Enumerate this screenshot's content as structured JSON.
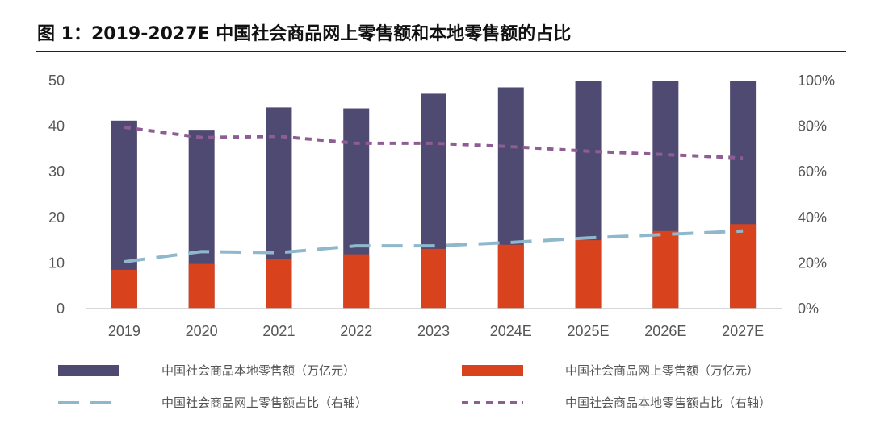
{
  "title": "图 1：2019-2027E 中国社会商品网上零售额和本地零售额的占比",
  "chart_data": {
    "type": "bar",
    "stacked": false,
    "categories": [
      "2019",
      "2020",
      "2021",
      "2022",
      "2023",
      "2024E",
      "2025E",
      "2026E",
      "2027E"
    ],
    "series": [
      {
        "name": "中国社会商品本地零售额（万亿元）",
        "kind": "bar",
        "axis": "left",
        "color": "#4f4a72",
        "values": [
          41.2,
          39.2,
          44.1,
          43.9,
          47.1,
          48.5,
          50.0,
          50.0,
          50.0
        ]
      },
      {
        "name": "中国社会商品网上零售额（万亿元）",
        "kind": "bar",
        "axis": "left",
        "color": "#d8431e",
        "values": [
          8.5,
          9.8,
          10.9,
          11.9,
          13.1,
          14.0,
          15.0,
          17.0,
          18.5
        ]
      },
      {
        "name": "中国社会商品网上零售额占比（右轴）",
        "kind": "line",
        "axis": "right",
        "style": "long-dash",
        "color": "#8fb8cc",
        "values": [
          0.205,
          0.25,
          0.245,
          0.275,
          0.275,
          0.29,
          0.31,
          0.325,
          0.34
        ]
      },
      {
        "name": "中国社会商品本地零售额占比（右轴）",
        "kind": "line",
        "axis": "right",
        "style": "short-dash",
        "color": "#8e5d93",
        "values": [
          0.795,
          0.75,
          0.755,
          0.725,
          0.725,
          0.71,
          0.69,
          0.675,
          0.66
        ]
      }
    ],
    "y_left": {
      "min": 0,
      "max": 50,
      "ticks": [
        "0",
        "10",
        "20",
        "30",
        "40",
        "50"
      ]
    },
    "y_right": {
      "min": 0,
      "max": 1,
      "ticks": [
        "0%",
        "20%",
        "40%",
        "60%",
        "80%",
        "100%"
      ]
    },
    "grid": false,
    "legend": "bottom"
  }
}
